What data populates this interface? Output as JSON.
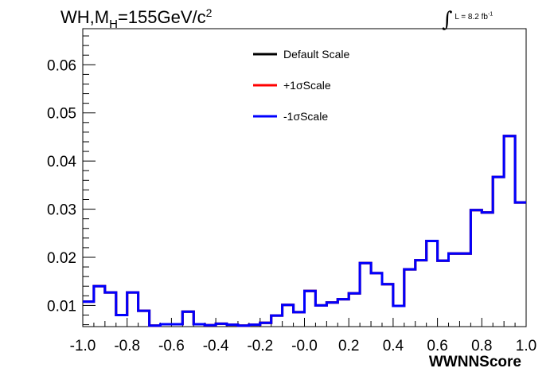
{
  "title": {
    "process": "WH,M",
    "subscript": "H",
    "mass": "=155GeV/c",
    "superscript": "2"
  },
  "luminosity": {
    "integral_symbol": "∫",
    "text": "L = 8.2 fb",
    "exponent": "-1"
  },
  "chart_data": {
    "type": "line",
    "subtype": "histogram-step",
    "xlabel": "WWNNScore",
    "ylabel": "",
    "xlim": [
      -1.0,
      1.0
    ],
    "ylim": [
      0.0056,
      0.0675
    ],
    "x_ticks": [
      -1.0,
      -0.8,
      -0.6,
      -0.4,
      -0.2,
      0.0,
      0.2,
      0.4,
      0.6,
      0.8,
      1.0
    ],
    "x_tick_labels": [
      "-1.0",
      "-0.8",
      "-0.6",
      "-0.4",
      "-0.2",
      "-0.0",
      "0.2",
      "0.4",
      "0.6",
      "0.8",
      "1.0"
    ],
    "y_ticks": [
      0.01,
      0.02,
      0.03,
      0.04,
      0.05,
      0.06
    ],
    "y_tick_labels": [
      "0.01",
      "0.02",
      "0.03",
      "0.04",
      "0.05",
      "0.06"
    ],
    "grid": false,
    "legend_position": "top-center",
    "bin_edges": [
      -1.0,
      -0.95,
      -0.9,
      -0.85,
      -0.8,
      -0.75,
      -0.7,
      -0.65,
      -0.6,
      -0.55,
      -0.5,
      -0.45,
      -0.4,
      -0.35,
      -0.3,
      -0.25,
      -0.2,
      -0.15,
      -0.1,
      -0.05,
      0.0,
      0.05,
      0.1,
      0.15,
      0.2,
      0.25,
      0.3,
      0.35,
      0.4,
      0.45,
      0.5,
      0.55,
      0.6,
      0.65,
      0.7,
      0.75,
      0.8,
      0.85,
      0.9,
      0.95,
      1.0
    ],
    "series": [
      {
        "name": "Default Scale",
        "color": "#000000",
        "values": [
          0.0108,
          0.014,
          0.0127,
          0.008,
          0.0127,
          0.0089,
          0.0058,
          0.0061,
          0.0061,
          0.0087,
          0.0061,
          0.0059,
          0.0062,
          0.006,
          0.0058,
          0.006,
          0.0064,
          0.0079,
          0.0101,
          0.0086,
          0.013,
          0.01,
          0.0106,
          0.0113,
          0.0125,
          0.0188,
          0.0167,
          0.0144,
          0.0099,
          0.0175,
          0.0194,
          0.0234,
          0.0193,
          0.0208,
          0.0208,
          0.0298,
          0.0293,
          0.0367,
          0.0452,
          0.0314
        ]
      },
      {
        "name": "+1σScale",
        "color": "#ff0000",
        "values": [
          0.0108,
          0.014,
          0.0127,
          0.008,
          0.0127,
          0.0089,
          0.0058,
          0.0061,
          0.0061,
          0.0087,
          0.0061,
          0.0059,
          0.0062,
          0.006,
          0.0058,
          0.006,
          0.0064,
          0.0079,
          0.0101,
          0.0086,
          0.013,
          0.01,
          0.0106,
          0.0113,
          0.0125,
          0.0188,
          0.0167,
          0.0144,
          0.0099,
          0.0175,
          0.0194,
          0.0234,
          0.0193,
          0.0208,
          0.0208,
          0.0298,
          0.0293,
          0.0367,
          0.0452,
          0.0314
        ]
      },
      {
        "name": "-1σScale",
        "color": "#0000ff",
        "values": [
          0.0108,
          0.014,
          0.0127,
          0.008,
          0.0127,
          0.0089,
          0.0058,
          0.0061,
          0.0061,
          0.0087,
          0.0061,
          0.0059,
          0.0062,
          0.006,
          0.0058,
          0.006,
          0.0064,
          0.0079,
          0.0101,
          0.0086,
          0.013,
          0.01,
          0.0106,
          0.0113,
          0.0125,
          0.0188,
          0.0167,
          0.0144,
          0.0099,
          0.0175,
          0.0194,
          0.0234,
          0.0193,
          0.0208,
          0.0208,
          0.0298,
          0.0293,
          0.0367,
          0.0452,
          0.0314
        ]
      }
    ]
  }
}
